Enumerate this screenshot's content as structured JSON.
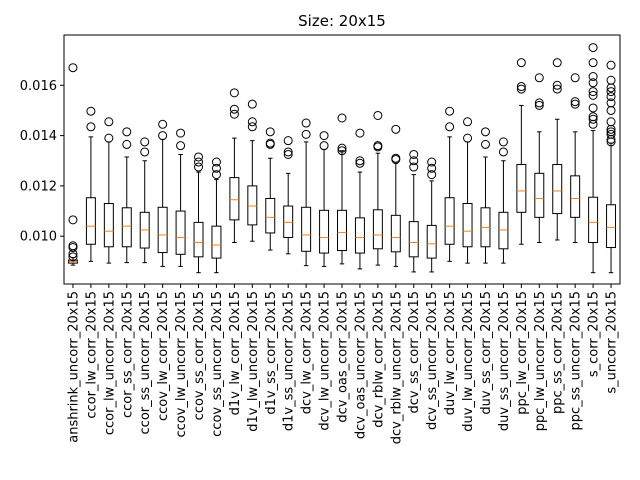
{
  "chart_data": {
    "type": "boxplot",
    "title": "Size: 20x15",
    "xlabel": "",
    "ylabel": "",
    "ylim": [
      0.0081,
      0.018
    ],
    "yticks": [
      0.01,
      0.012,
      0.014,
      0.016
    ],
    "ytick_labels": [
      "0.010",
      "0.012",
      "0.014",
      "0.016"
    ],
    "grid": false,
    "colors": {
      "box": "#000000",
      "median": "#ff7f0e",
      "flier": "#000000"
    },
    "categories": [
      "anshrink_uncorr_20x15",
      "ccor_lw_corr_20x15",
      "ccor_lw_uncorr_20x15",
      "ccor_ss_corr_20x15",
      "ccor_ss_uncorr_20x15",
      "ccov_lw_corr_20x15",
      "ccov_lw_uncorr_20x15",
      "ccov_ss_corr_20x15",
      "ccov_ss_uncorr_20x15",
      "d1v_lw_corr_20x15",
      "d1v_lw_uncorr_20x15",
      "d1v_ss_corr_20x15",
      "d1v_ss_uncorr_20x15",
      "dcv_lw_corr_20x15",
      "dcv_lw_uncorr_20x15",
      "dcv_oas_corr_20x15",
      "dcv_oas_uncorr_20x15",
      "dcv_rblw_corr_20x15",
      "dcv_rblw_uncorr_20x15",
      "dcv_ss_corr_20x15",
      "dcv_ss_uncorr_20x15",
      "duv_lw_corr_20x15",
      "duv_lw_uncorr_20x15",
      "duv_ss_corr_20x15",
      "duv_ss_uncorr_20x15",
      "ppc_lw_corr_20x15",
      "ppc_lw_uncorr_20x15",
      "ppc_ss_corr_20x15",
      "ppc_ss_uncorr_20x15",
      "s_corr_20x15",
      "s_uncorr_20x15"
    ],
    "boxes": [
      {
        "whislo": 0.00885,
        "q1": 0.00893,
        "med": 0.00899,
        "q3": 0.00905,
        "whishi": 0.00915,
        "fliers": [
          0.0167,
          0.01065,
          0.00962,
          0.00955,
          0.0093,
          0.00918
        ]
      },
      {
        "whislo": 0.009,
        "q1": 0.00968,
        "med": 0.0104,
        "q3": 0.01153,
        "whishi": 0.01395,
        "fliers": [
          0.01497,
          0.01435
        ]
      },
      {
        "whislo": 0.00893,
        "q1": 0.00958,
        "med": 0.0102,
        "q3": 0.0113,
        "whishi": 0.01375,
        "fliers": [
          0.01455,
          0.0139
        ]
      },
      {
        "whislo": 0.00895,
        "q1": 0.00958,
        "med": 0.0104,
        "q3": 0.01113,
        "whishi": 0.01315,
        "fliers": [
          0.01415,
          0.01365
        ]
      },
      {
        "whislo": 0.00895,
        "q1": 0.00953,
        "med": 0.01025,
        "q3": 0.01095,
        "whishi": 0.013,
        "fliers": [
          0.01375,
          0.01335
        ]
      },
      {
        "whislo": 0.0088,
        "q1": 0.00935,
        "med": 0.01005,
        "q3": 0.01115,
        "whishi": 0.01385,
        "fliers": [
          0.01445,
          0.014
        ]
      },
      {
        "whislo": 0.0088,
        "q1": 0.00928,
        "med": 0.00995,
        "q3": 0.011,
        "whishi": 0.01325,
        "fliers": [
          0.0141,
          0.0136
        ]
      },
      {
        "whislo": 0.00855,
        "q1": 0.00918,
        "med": 0.00975,
        "q3": 0.01055,
        "whishi": 0.01255,
        "fliers": [
          0.01315,
          0.01295,
          0.01275
        ]
      },
      {
        "whislo": 0.00855,
        "q1": 0.00913,
        "med": 0.00965,
        "q3": 0.0104,
        "whishi": 0.01225,
        "fliers": [
          0.01295,
          0.0127,
          0.01245
        ]
      },
      {
        "whislo": 0.00975,
        "q1": 0.01065,
        "med": 0.01145,
        "q3": 0.01233,
        "whishi": 0.0139,
        "fliers": [
          0.0157,
          0.01505,
          0.01485
        ]
      },
      {
        "whislo": 0.0098,
        "q1": 0.01045,
        "med": 0.0112,
        "q3": 0.012,
        "whishi": 0.0138,
        "fliers": [
          0.01525,
          0.01455,
          0.01435
        ]
      },
      {
        "whislo": 0.00945,
        "q1": 0.01013,
        "med": 0.01075,
        "q3": 0.0115,
        "whishi": 0.0131,
        "fliers": [
          0.01415,
          0.0137,
          0.01365
        ]
      },
      {
        "whislo": 0.0093,
        "q1": 0.00995,
        "med": 0.01055,
        "q3": 0.0112,
        "whishi": 0.0125,
        "fliers": [
          0.0138,
          0.01335,
          0.01325
        ]
      },
      {
        "whislo": 0.00883,
        "q1": 0.0094,
        "med": 0.01005,
        "q3": 0.01115,
        "whishi": 0.01375,
        "fliers": [
          0.0145,
          0.01405
        ]
      },
      {
        "whislo": 0.0088,
        "q1": 0.00933,
        "med": 0.00995,
        "q3": 0.01103,
        "whishi": 0.01345,
        "fliers": [
          0.014,
          0.0136
        ]
      },
      {
        "whislo": 0.0089,
        "q1": 0.00943,
        "med": 0.01015,
        "q3": 0.01103,
        "whishi": 0.0134,
        "fliers": [
          0.0147,
          0.0135,
          0.0134
        ]
      },
      {
        "whislo": 0.0087,
        "q1": 0.00933,
        "med": 0.00995,
        "q3": 0.01073,
        "whishi": 0.01255,
        "fliers": [
          0.0141,
          0.013,
          0.0129
        ]
      },
      {
        "whislo": 0.00885,
        "q1": 0.0095,
        "med": 0.01005,
        "q3": 0.01105,
        "whishi": 0.0133,
        "fliers": [
          0.0148,
          0.0136,
          0.01355
        ]
      },
      {
        "whislo": 0.0088,
        "q1": 0.00938,
        "med": 0.00995,
        "q3": 0.01083,
        "whishi": 0.0129,
        "fliers": [
          0.01425,
          0.0131,
          0.01305
        ]
      },
      {
        "whislo": 0.00858,
        "q1": 0.00918,
        "med": 0.00975,
        "q3": 0.01058,
        "whishi": 0.01245,
        "fliers": [
          0.01325,
          0.013,
          0.01275
        ]
      },
      {
        "whislo": 0.00858,
        "q1": 0.00913,
        "med": 0.0097,
        "q3": 0.01043,
        "whishi": 0.0122,
        "fliers": [
          0.01295,
          0.0127,
          0.01245
        ]
      },
      {
        "whislo": 0.009,
        "q1": 0.00968,
        "med": 0.0104,
        "q3": 0.01153,
        "whishi": 0.01395,
        "fliers": [
          0.01497,
          0.01435
        ]
      },
      {
        "whislo": 0.00893,
        "q1": 0.00958,
        "med": 0.0102,
        "q3": 0.0113,
        "whishi": 0.01375,
        "fliers": [
          0.01455,
          0.0139
        ]
      },
      {
        "whislo": 0.00893,
        "q1": 0.00958,
        "med": 0.01035,
        "q3": 0.01113,
        "whishi": 0.01315,
        "fliers": [
          0.01415,
          0.01365
        ]
      },
      {
        "whislo": 0.00893,
        "q1": 0.0095,
        "med": 0.01025,
        "q3": 0.01095,
        "whishi": 0.013,
        "fliers": [
          0.01375,
          0.01335
        ]
      },
      {
        "whislo": 0.00968,
        "q1": 0.01095,
        "med": 0.0118,
        "q3": 0.01285,
        "whishi": 0.0152,
        "fliers": [
          0.0169,
          0.01595,
          0.01585
        ]
      },
      {
        "whislo": 0.00975,
        "q1": 0.01075,
        "med": 0.0115,
        "q3": 0.0125,
        "whishi": 0.01415,
        "fliers": [
          0.0163,
          0.0153,
          0.0152
        ]
      },
      {
        "whislo": 0.00985,
        "q1": 0.0109,
        "med": 0.0118,
        "q3": 0.01285,
        "whishi": 0.01465,
        "fliers": [
          0.0169,
          0.016,
          0.01585
        ]
      },
      {
        "whislo": 0.00975,
        "q1": 0.01075,
        "med": 0.0115,
        "q3": 0.0124,
        "whishi": 0.01415,
        "fliers": [
          0.0163,
          0.01535,
          0.01525
        ]
      },
      {
        "whislo": 0.00855,
        "q1": 0.00975,
        "med": 0.01055,
        "q3": 0.01155,
        "whishi": 0.0142,
        "fliers": [
          0.0175,
          0.0169,
          0.01635,
          0.0161,
          0.01575,
          0.0156,
          0.0151,
          0.01475,
          0.01465,
          0.01445
        ]
      },
      {
        "whislo": 0.00855,
        "q1": 0.00955,
        "med": 0.01035,
        "q3": 0.01125,
        "whishi": 0.0137,
        "fliers": [
          0.0168,
          0.0162,
          0.0159,
          0.01575,
          0.01555,
          0.0153,
          0.015,
          0.01455,
          0.01425,
          0.01415,
          0.01405,
          0.01385,
          0.01375
        ]
      }
    ]
  }
}
